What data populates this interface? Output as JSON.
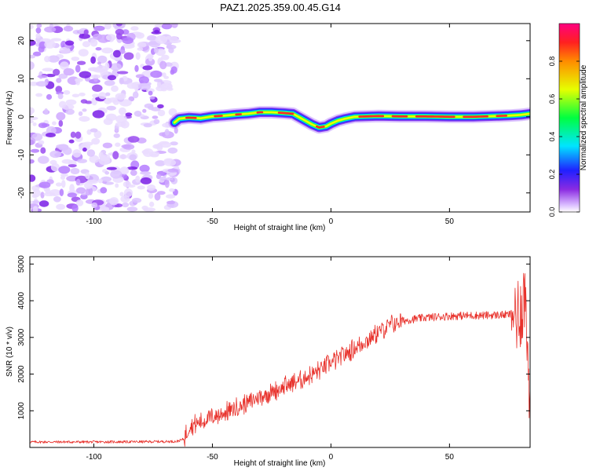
{
  "title": "PAZ1.2025.359.00.45.G14",
  "chart_data": [
    {
      "type": "heatmap",
      "xlabel": "Height of straight line (km)",
      "ylabel": "Frequency (Hz)",
      "xlim": [
        -127,
        84
      ],
      "ylim": [
        -25,
        24.5
      ],
      "xticks": [
        -100,
        -50,
        0,
        50
      ],
      "yticks": [
        -20,
        -10,
        0,
        10,
        20
      ],
      "noise_region_x": [
        -127,
        -65
      ],
      "ridge": {
        "x": [
          -66,
          -64,
          -60,
          -55,
          -50,
          -45,
          -40,
          -35,
          -30,
          -25,
          -20,
          -16,
          -12,
          -8,
          -5,
          -2,
          0,
          3,
          6,
          10,
          15,
          20,
          30,
          40,
          50,
          60,
          65,
          70,
          75,
          80,
          84
        ],
        "freq": [
          -1.5,
          -0.5,
          -0.2,
          -0.4,
          0.1,
          0.3,
          0.6,
          0.8,
          1.2,
          1.2,
          1.0,
          0.8,
          -0.6,
          -2.0,
          -2.8,
          -2.5,
          -1.8,
          -1.0,
          -0.5,
          0.0,
          0.1,
          0.2,
          0.1,
          0.1,
          0.0,
          0.0,
          0.1,
          0.2,
          0.3,
          0.5,
          0.8
        ]
      },
      "colorbar": {
        "label": "Normalized spectral amplitude",
        "range": [
          0,
          1
        ],
        "ticks": [
          "0.0",
          "0.2",
          "0.4",
          "0.6",
          "0.8"
        ]
      }
    },
    {
      "type": "line",
      "xlabel": "Height of straight line (km)",
      "ylabel": "SNR (10 * v/v)",
      "xlim": [
        -127,
        84
      ],
      "ylim": [
        0,
        5200
      ],
      "xticks": [
        -100,
        -50,
        0,
        50
      ],
      "yticks": [
        1000,
        2000,
        3000,
        4000,
        5000
      ],
      "series": [
        {
          "name": "SNR",
          "color": "#e8302a",
          "x": [
            -127,
            -100,
            -80,
            -65,
            -62,
            -60,
            -55,
            -50,
            -45,
            -40,
            -35,
            -30,
            -25,
            -20,
            -15,
            -10,
            -5,
            0,
            5,
            10,
            15,
            20,
            25,
            30,
            35,
            40,
            45,
            50,
            55,
            60,
            65,
            70,
            75,
            78,
            80,
            82,
            84
          ],
          "values": [
            150,
            150,
            155,
            165,
            230,
            550,
            700,
            820,
            940,
            1080,
            1230,
            1380,
            1520,
            1650,
            1780,
            1930,
            2100,
            2300,
            2500,
            2700,
            2900,
            3150,
            3350,
            3450,
            3500,
            3540,
            3560,
            3580,
            3590,
            3600,
            3600,
            3610,
            3620,
            3650,
            3750,
            4200,
            800
          ]
        }
      ]
    }
  ],
  "colors": {
    "snr_line": "#e8302a",
    "noise_purple": "#8a2be2"
  }
}
